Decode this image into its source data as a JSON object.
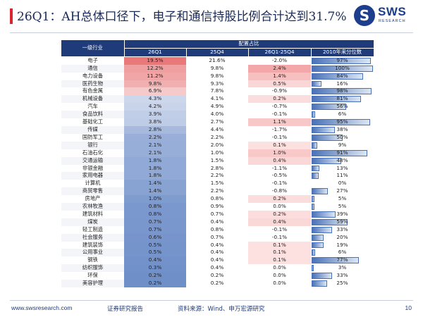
{
  "header": {
    "title": "26Q1：AH总体口径下，电子和通信持股比例合计达到31.7%",
    "logo_text": "SWS",
    "logo_sub": "RESEARCH"
  },
  "table": {
    "group_header": "配置占比",
    "columns": [
      "一级行业",
      "26Q1",
      "25Q4",
      "26Q1-25Q4",
      "2010年来分位数"
    ],
    "rows": [
      {
        "industry": "电子",
        "q1": "19.5%",
        "q4": "21.6%",
        "diff": "-2.0%",
        "pct": "97%"
      },
      {
        "industry": "通信",
        "q1": "12.2%",
        "q4": "9.8%",
        "diff": "2.4%",
        "pct": "100%"
      },
      {
        "industry": "电力设备",
        "q1": "11.2%",
        "q4": "9.8%",
        "diff": "1.4%",
        "pct": "84%"
      },
      {
        "industry": "医药生物",
        "q1": "9.8%",
        "q4": "9.3%",
        "diff": "0.5%",
        "pct": "16%"
      },
      {
        "industry": "有色金属",
        "q1": "6.9%",
        "q4": "7.8%",
        "diff": "-0.9%",
        "pct": "98%"
      },
      {
        "industry": "机械设备",
        "q1": "4.3%",
        "q4": "4.1%",
        "diff": "0.2%",
        "pct": "81%"
      },
      {
        "industry": "汽车",
        "q1": "4.2%",
        "q4": "4.9%",
        "diff": "-0.7%",
        "pct": "56%"
      },
      {
        "industry": "食品饮料",
        "q1": "3.9%",
        "q4": "4.0%",
        "diff": "-0.1%",
        "pct": "6%"
      },
      {
        "industry": "基础化工",
        "q1": "3.8%",
        "q4": "2.7%",
        "diff": "1.1%",
        "pct": "95%"
      },
      {
        "industry": "传媒",
        "q1": "2.8%",
        "q4": "4.4%",
        "diff": "-1.7%",
        "pct": "38%"
      },
      {
        "industry": "国防军工",
        "q1": "2.2%",
        "q4": "2.2%",
        "diff": "-0.1%",
        "pct": "50%"
      },
      {
        "industry": "银行",
        "q1": "2.1%",
        "q4": "2.0%",
        "diff": "0.1%",
        "pct": "9%"
      },
      {
        "industry": "石油石化",
        "q1": "2.1%",
        "q4": "1.0%",
        "diff": "1.0%",
        "pct": "91%"
      },
      {
        "industry": "交通运输",
        "q1": "1.8%",
        "q4": "1.5%",
        "diff": "0.4%",
        "pct": "48%"
      },
      {
        "industry": "非银金融",
        "q1": "1.8%",
        "q4": "2.8%",
        "diff": "-1.1%",
        "pct": "13%"
      },
      {
        "industry": "家用电器",
        "q1": "1.8%",
        "q4": "2.2%",
        "diff": "-0.5%",
        "pct": "11%"
      },
      {
        "industry": "计算机",
        "q1": "1.4%",
        "q4": "1.5%",
        "diff": "-0.1%",
        "pct": "0%"
      },
      {
        "industry": "商贸零售",
        "q1": "1.4%",
        "q4": "2.2%",
        "diff": "-0.8%",
        "pct": "27%"
      },
      {
        "industry": "房地产",
        "q1": "1.0%",
        "q4": "0.8%",
        "diff": "0.2%",
        "pct": "5%"
      },
      {
        "industry": "农林牧渔",
        "q1": "0.8%",
        "q4": "0.9%",
        "diff": "0.0%",
        "pct": "5%"
      },
      {
        "industry": "建筑材料",
        "q1": "0.8%",
        "q4": "0.7%",
        "diff": "0.2%",
        "pct": "39%"
      },
      {
        "industry": "煤炭",
        "q1": "0.7%",
        "q4": "0.4%",
        "diff": "0.4%",
        "pct": "59%"
      },
      {
        "industry": "轻工制造",
        "q1": "0.7%",
        "q4": "0.8%",
        "diff": "-0.1%",
        "pct": "33%"
      },
      {
        "industry": "社会服务",
        "q1": "0.6%",
        "q4": "0.7%",
        "diff": "-0.1%",
        "pct": "20%"
      },
      {
        "industry": "建筑装饰",
        "q1": "0.5%",
        "q4": "0.4%",
        "diff": "0.1%",
        "pct": "19%"
      },
      {
        "industry": "公用事业",
        "q1": "0.5%",
        "q4": "0.4%",
        "diff": "0.1%",
        "pct": "6%"
      },
      {
        "industry": "钢铁",
        "q1": "0.4%",
        "q4": "0.4%",
        "diff": "0.1%",
        "pct": "77%"
      },
      {
        "industry": "纺织服饰",
        "q1": "0.3%",
        "q4": "0.4%",
        "diff": "0.0%",
        "pct": "3%"
      },
      {
        "industry": "环保",
        "q1": "0.2%",
        "q4": "0.2%",
        "diff": "0.0%",
        "pct": "33%"
      },
      {
        "industry": "美容护理",
        "q1": "0.2%",
        "q4": "0.2%",
        "diff": "0.0%",
        "pct": "25%"
      }
    ]
  },
  "footer": {
    "url": "www.swsresearch.com",
    "report": "证券研究报告",
    "source": "资料来源：Wind、申万宏源研究",
    "page": "10"
  },
  "colors": {
    "header_blue": "#1f3b7a",
    "accent_red": "#d9262e",
    "heat_red": "#e8787a",
    "heat_blue": "#6f8fc9",
    "bar_blue": "#4a72b8"
  }
}
